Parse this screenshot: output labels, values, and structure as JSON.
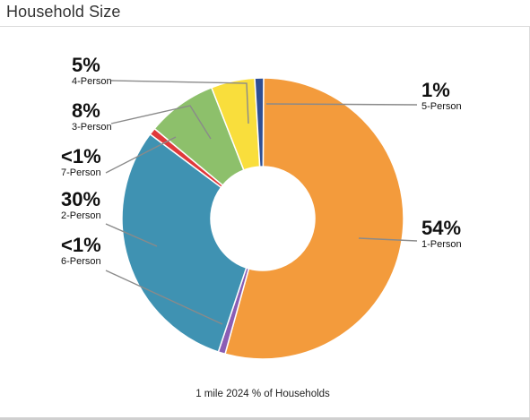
{
  "header": {
    "title": "Household Size"
  },
  "chart_data": {
    "type": "pie",
    "style": "donut",
    "caption": "1 mile 2024 % of Households",
    "slices": [
      {
        "key": "p1",
        "label": "1-Person",
        "display": "54%",
        "value": 54,
        "color": "#F39B3C"
      },
      {
        "key": "p6",
        "label": "6-Person",
        "display": "<1%",
        "value": 0.8,
        "color": "#8A5DB5"
      },
      {
        "key": "p2",
        "label": "2-Person",
        "display": "30%",
        "value": 30,
        "color": "#3F92B2"
      },
      {
        "key": "p7",
        "label": "7-Person",
        "display": "<1%",
        "value": 0.8,
        "color": "#E0393B"
      },
      {
        "key": "p3",
        "label": "3-Person",
        "display": "8%",
        "value": 8,
        "color": "#8DC06B"
      },
      {
        "key": "p4",
        "label": "4-Person",
        "display": "5%",
        "value": 5,
        "color": "#F9DE3C"
      },
      {
        "key": "p5",
        "label": "5-Person",
        "display": "1%",
        "value": 1,
        "color": "#2F4F94"
      }
    ],
    "legend_placement": "callouts around chart"
  }
}
